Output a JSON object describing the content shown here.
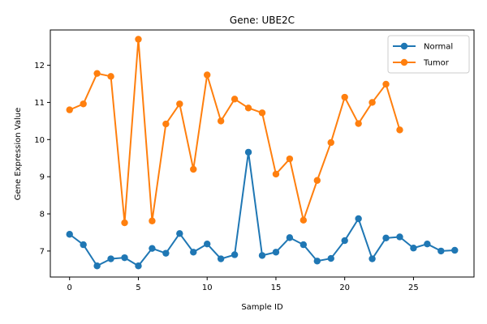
{
  "chart_data": {
    "type": "line",
    "title": "Gene: UBE2C",
    "xlabel": "Sample ID",
    "ylabel": "Gene Expression Value",
    "xlim": [
      -1.4,
      29.4
    ],
    "ylim": [
      6.3,
      12.95
    ],
    "xticks": [
      0,
      5,
      10,
      15,
      20,
      25
    ],
    "yticks": [
      7,
      8,
      9,
      10,
      11,
      12
    ],
    "grid": false,
    "legend_position": "top-right",
    "markers": "circle",
    "series": [
      {
        "name": "Normal",
        "color": "#1f77b4",
        "x": [
          0,
          1,
          2,
          3,
          4,
          5,
          6,
          7,
          8,
          9,
          10,
          11,
          12,
          13,
          14,
          15,
          16,
          17,
          18,
          19,
          20,
          21,
          22,
          23,
          24,
          25,
          26,
          27,
          28
        ],
        "values": [
          7.45,
          7.17,
          6.6,
          6.79,
          6.82,
          6.6,
          7.07,
          6.94,
          7.47,
          6.97,
          7.19,
          6.79,
          6.9,
          9.66,
          6.88,
          6.97,
          7.36,
          7.17,
          6.73,
          6.8,
          7.28,
          7.87,
          6.79,
          7.35,
          7.38,
          7.08,
          7.19,
          7.0,
          7.02
        ]
      },
      {
        "name": "Tumor",
        "color": "#ff7f0e",
        "x": [
          0,
          1,
          2,
          3,
          4,
          5,
          6,
          7,
          8,
          9,
          10,
          11,
          12,
          13,
          14,
          15,
          16,
          17,
          18,
          19,
          20,
          21,
          22,
          23,
          24
        ],
        "values": [
          10.8,
          10.96,
          11.78,
          11.7,
          7.76,
          12.7,
          7.81,
          10.42,
          10.96,
          9.2,
          11.74,
          10.5,
          11.09,
          10.85,
          10.72,
          9.07,
          9.48,
          7.83,
          8.9,
          9.92,
          11.14,
          10.43,
          11.0,
          11.49,
          10.26
        ]
      }
    ]
  }
}
